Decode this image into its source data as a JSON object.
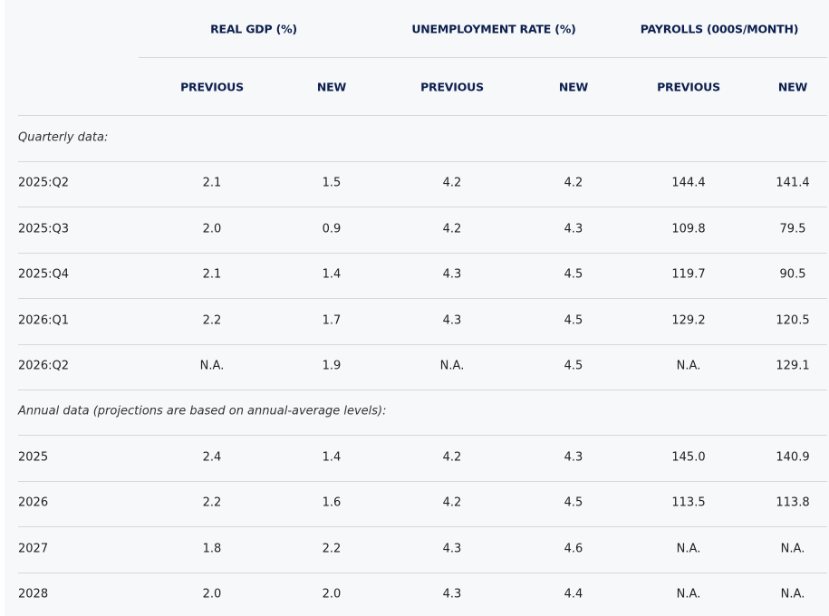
{
  "table": {
    "groups": [
      "REAL GDP (%)",
      "UNEMPLOYMENT RATE (%)",
      "PAYROLLS (000S/MONTH)"
    ],
    "subheaders": [
      "PREVIOUS",
      "NEW",
      "PREVIOUS",
      "NEW",
      "PREVIOUS",
      "NEW"
    ],
    "sections": [
      {
        "label": "Quarterly data:",
        "rows": [
          [
            "2025:Q2",
            "2.1",
            "1.5",
            "4.2",
            "4.2",
            "144.4",
            "141.4"
          ],
          [
            "2025:Q3",
            "2.0",
            "0.9",
            "4.2",
            "4.3",
            "109.8",
            "79.5"
          ],
          [
            "2025:Q4",
            "2.1",
            "1.4",
            "4.3",
            "4.5",
            "119.7",
            "90.5"
          ],
          [
            "2026:Q1",
            "2.2",
            "1.7",
            "4.3",
            "4.5",
            "129.2",
            "120.5"
          ],
          [
            "2026:Q2",
            "N.A.",
            "1.9",
            "N.A.",
            "4.5",
            "N.A.",
            "129.1"
          ]
        ]
      },
      {
        "label": "Annual data (projections are based on annual-average levels):",
        "rows": [
          [
            "2025",
            "2.4",
            "1.4",
            "4.2",
            "4.3",
            "145.0",
            "140.9"
          ],
          [
            "2026",
            "2.2",
            "1.6",
            "4.2",
            "4.5",
            "113.5",
            "113.8"
          ],
          [
            "2027",
            "1.8",
            "2.2",
            "4.3",
            "4.6",
            "N.A.",
            "N.A."
          ],
          [
            "2028",
            "2.0",
            "2.0",
            "4.3",
            "4.4",
            "N.A.",
            "N.A."
          ]
        ]
      }
    ]
  }
}
